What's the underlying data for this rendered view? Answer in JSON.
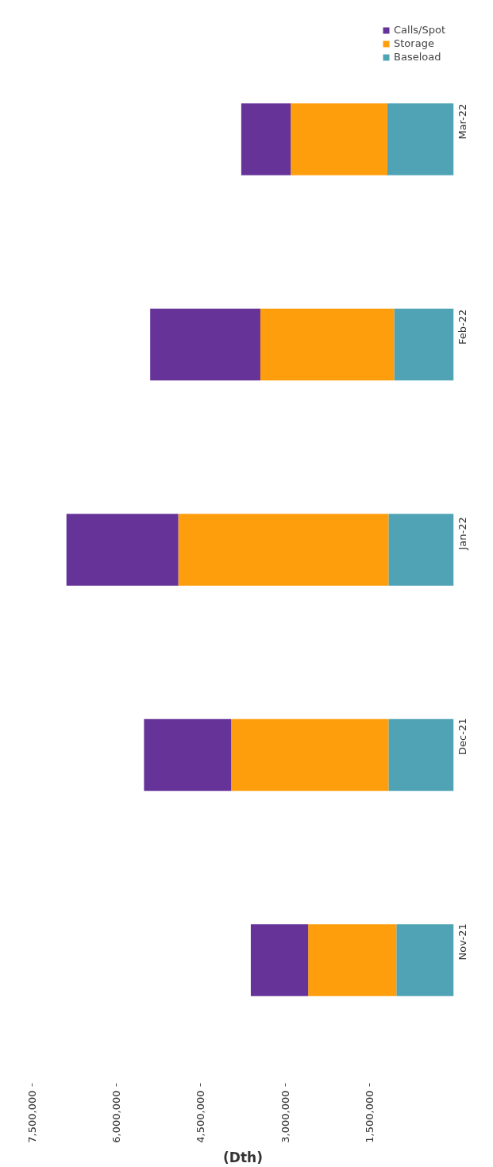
{
  "chart_data": {
    "type": "bar",
    "stacked": true,
    "orientation": "horizontal",
    "categories": [
      "Mar-22",
      "Feb-22",
      "Jan-22",
      "Dec-21",
      "Nov-21"
    ],
    "series": [
      {
        "name": "Baseload",
        "color": "#4fa3b5",
        "values": [
          1180000,
          1060000,
          1160000,
          1160000,
          1020000
        ]
      },
      {
        "name": "Storage",
        "color": "#ff9e0d",
        "values": [
          1720000,
          2380000,
          3740000,
          2800000,
          1570000
        ]
      },
      {
        "name": "Calls/Spot",
        "color": "#663399",
        "values": [
          880000,
          1960000,
          1990000,
          1550000,
          1020000
        ]
      }
    ],
    "xlabel": "(Dth)",
    "xlim": [
      7500000,
      0
    ],
    "xticks": [
      {
        "value": 7500000,
        "label": "7,500,000"
      },
      {
        "value": 6000000,
        "label": "6,000,000"
      },
      {
        "value": 4500000,
        "label": "4,500,000"
      },
      {
        "value": 3000000,
        "label": "3,000,000"
      },
      {
        "value": 1500000,
        "label": "1,500,000"
      }
    ],
    "legend": "top right",
    "grid": false
  }
}
